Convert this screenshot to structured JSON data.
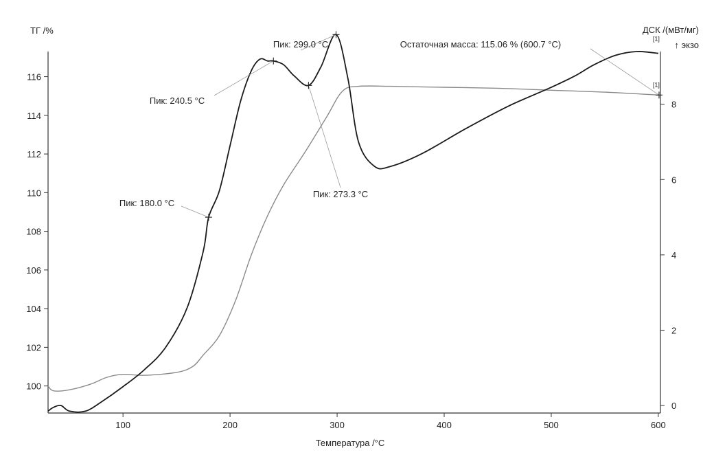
{
  "chart_data": {
    "type": "line",
    "y_left_label": "ТГ /%",
    "y_right_label": "ДСК /(мВт/мг)",
    "y_right_sublabel": "↑ экзо",
    "xlabel": "Температура /°C",
    "xlim": [
      30,
      602
    ],
    "ylim_left": [
      98.6,
      117.3
    ],
    "ylim_right": [
      -0.2,
      9.4
    ],
    "x_ticks": [
      100,
      200,
      300,
      400,
      500,
      600
    ],
    "y_left_ticks": [
      100,
      102,
      104,
      106,
      108,
      110,
      112,
      114,
      116
    ],
    "y_right_ticks": [
      0,
      2,
      4,
      6,
      8
    ],
    "series": [
      {
        "tag": "[1]",
        "color": "#8a8a8a",
        "axis": "left",
        "x": [
          30,
          35,
          50,
          70,
          85,
          100,
          120,
          150,
          165,
          175,
          190,
          205,
          220,
          235,
          250,
          270,
          290,
          305,
          320,
          350,
          400,
          450,
          500,
          550,
          600
        ],
        "y": [
          100.0,
          99.75,
          99.8,
          100.1,
          100.45,
          100.6,
          100.55,
          100.7,
          101.0,
          101.6,
          102.6,
          104.4,
          106.8,
          108.8,
          110.4,
          112.1,
          113.9,
          115.25,
          115.5,
          115.5,
          115.45,
          115.4,
          115.3,
          115.2,
          115.05
        ]
      },
      {
        "tag": "[1]",
        "color": "#1a1a1a",
        "axis": "right",
        "x": [
          30,
          35,
          42,
          50,
          65,
          80,
          100,
          120,
          140,
          160,
          175,
          180,
          190,
          200,
          210,
          220,
          228,
          235,
          240.5,
          250,
          260,
          273.3,
          285,
          299,
          310,
          320,
          335,
          350,
          380,
          420,
          460,
          500,
          522,
          540,
          560,
          580,
          600
        ],
        "y": [
          -0.15,
          -0.05,
          0.0,
          -0.15,
          -0.15,
          0.1,
          0.5,
          0.95,
          1.55,
          2.6,
          4.1,
          5.0,
          5.7,
          6.9,
          8.1,
          8.9,
          9.2,
          9.15,
          9.15,
          9.05,
          8.75,
          8.5,
          9.0,
          9.85,
          8.7,
          7.0,
          6.35,
          6.35,
          6.7,
          7.35,
          7.95,
          8.45,
          8.75,
          9.05,
          9.3,
          9.4,
          9.35
        ]
      }
    ],
    "annotations": [
      {
        "label": "Пик: 299.0 °C",
        "x": 299.0,
        "series": 1
      },
      {
        "label": "Пик: 240.5 °C",
        "x": 240.5,
        "series": 1
      },
      {
        "label": "Пик: 180.0 °C",
        "x": 180.0,
        "series": 1
      },
      {
        "label": "Пик: 273.3 °C",
        "x": 273.3,
        "series": 1
      },
      {
        "label": "Остаточная масса: 115.06 % (600.7 °C)",
        "x": 600.7,
        "series": 0
      }
    ],
    "grid": false
  }
}
